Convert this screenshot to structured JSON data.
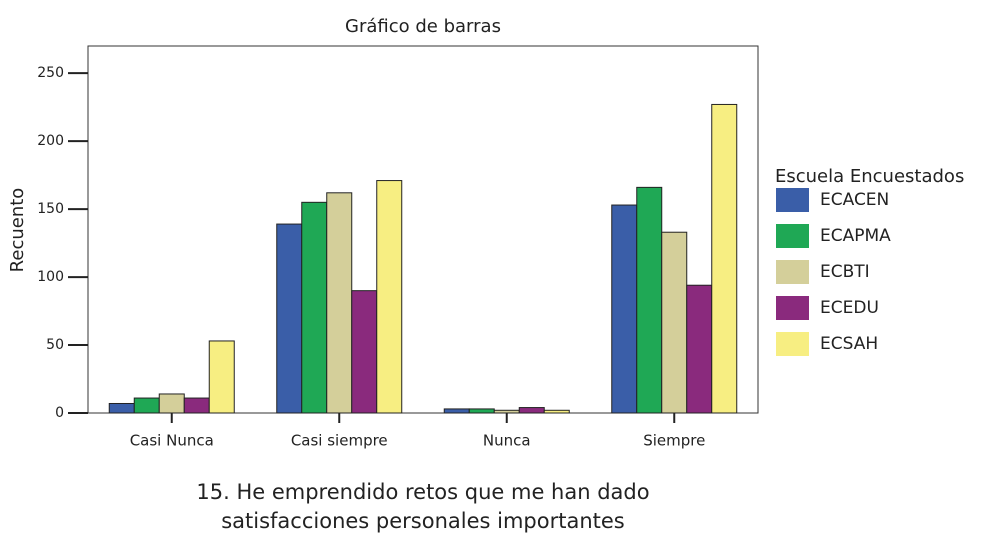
{
  "chart_data": {
    "type": "bar",
    "title": "Gráfico de barras",
    "y_label": "Recuento",
    "x_label": [
      "15. He emprendido retos que me han dado",
      "satisfacciones personales importantes"
    ],
    "categories": [
      "Casi Nunca",
      "Casi siempre",
      "Nunca",
      "Siempre"
    ],
    "legend_title": "Escuela Encuestados",
    "series": [
      {
        "name": "ECACEN",
        "color": "#3a5ea8",
        "values": [
          7,
          139,
          3,
          153
        ]
      },
      {
        "name": "ECAPMA",
        "color": "#1fa855",
        "values": [
          11,
          155,
          3,
          166
        ]
      },
      {
        "name": "ECBTI",
        "color": "#d4cf9a",
        "values": [
          14,
          162,
          2,
          133
        ]
      },
      {
        "name": "ECEDU",
        "color": "#8a2a7d",
        "values": [
          11,
          90,
          4,
          94
        ]
      },
      {
        "name": "ECSAH",
        "color": "#f7ee82",
        "values": [
          53,
          171,
          2,
          227
        ]
      }
    ],
    "ylim": [
      0,
      270
    ],
    "yticks": [
      0,
      50,
      100,
      150,
      200,
      250
    ],
    "grid": false,
    "legend": "right"
  }
}
